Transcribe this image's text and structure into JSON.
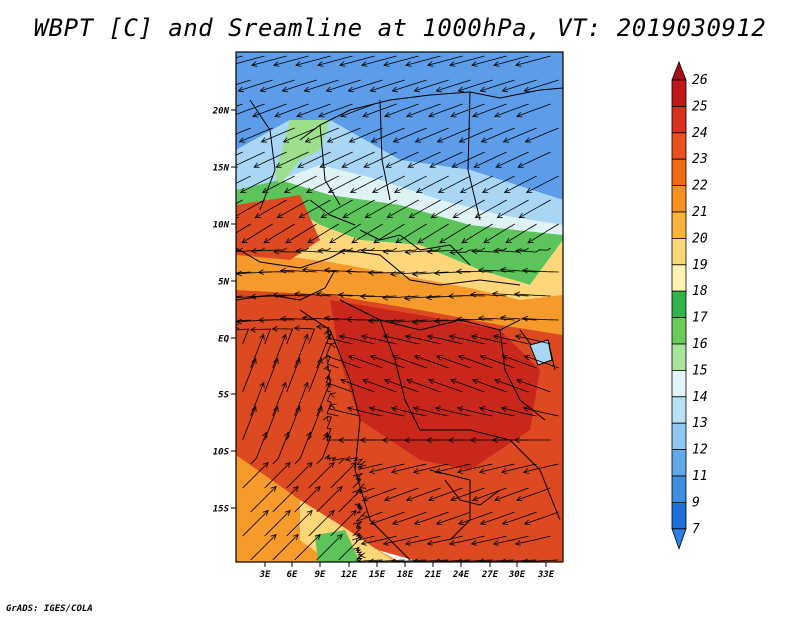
{
  "title": "WBPT [C] and Sreamline at 1000hPa, VT: 2019030912",
  "footer": "GrADS: IGES/COLA",
  "axes": {
    "lat_ticks": [
      "20N",
      "15N",
      "10N",
      "5N",
      "EQ",
      "5S",
      "10S",
      "15S"
    ],
    "lon_ticks": [
      "3E",
      "6E",
      "9E",
      "12E",
      "15E",
      "18E",
      "21E",
      "24E",
      "27E",
      "30E",
      "33E"
    ]
  },
  "colorbar": {
    "levels": [
      {
        "label": "26",
        "color": "#a50f15"
      },
      {
        "label": "25",
        "color": "#c0171b"
      },
      {
        "label": "24",
        "color": "#d7301f"
      },
      {
        "label": "23",
        "color": "#e8501c"
      },
      {
        "label": "22",
        "color": "#f16913"
      },
      {
        "label": "21",
        "color": "#f7901e"
      },
      {
        "label": "20",
        "color": "#fbb33c"
      },
      {
        "label": "19",
        "color": "#fdd67a"
      },
      {
        "label": "18",
        "color": "#fff2b0"
      },
      {
        "label": "17",
        "color": "#33b44a"
      },
      {
        "label": "16",
        "color": "#6bcb5a"
      },
      {
        "label": "15",
        "color": "#a8e39b"
      },
      {
        "label": "14",
        "color": "#e2f6f8"
      },
      {
        "label": "13",
        "color": "#b7e1f6"
      },
      {
        "label": "12",
        "color": "#8cc8f0"
      },
      {
        "label": "11",
        "color": "#5fa9ea"
      },
      {
        "label": "9",
        "color": "#3d8ee0"
      },
      {
        "label": "7",
        "color": "#1f6fdc"
      }
    ],
    "bottom_color": "#2a80e4"
  },
  "field_colors": {
    "cold": "#5d9ce8",
    "cool": "#a9d6f5",
    "pale": "#dff3f6",
    "green": "#5cc45a",
    "lightgreen": "#9ddf8d",
    "yellow": "#fdd67a",
    "orange": "#f59a2b",
    "hot": "#dd4a22",
    "hotter": "#c9271b",
    "borders": "#000000",
    "streamlines": "#000000"
  }
}
